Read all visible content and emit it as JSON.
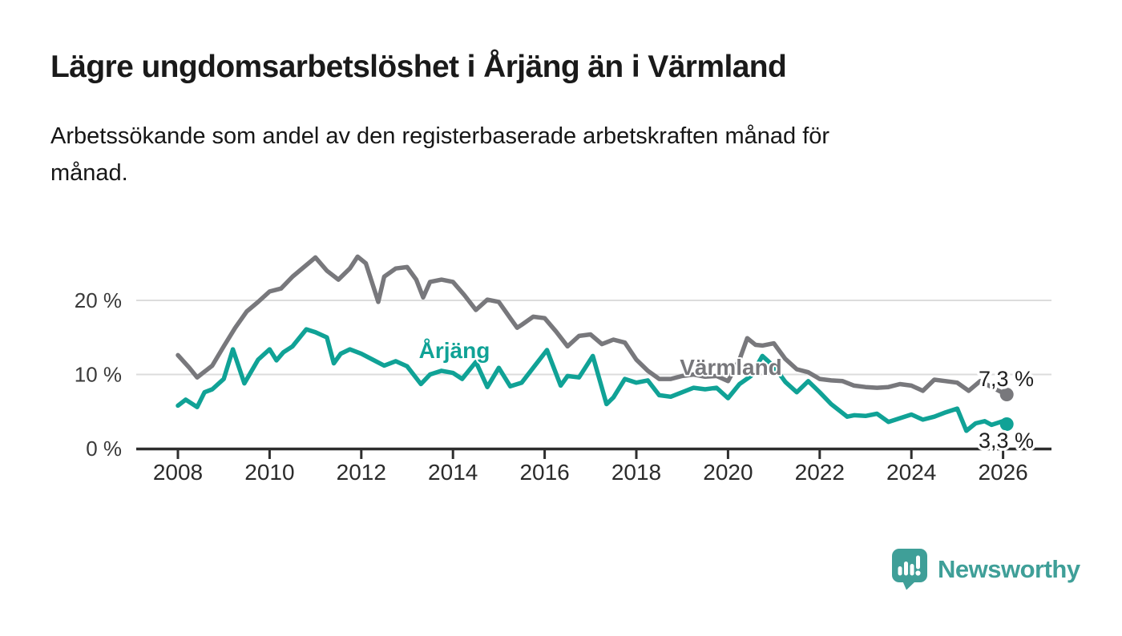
{
  "header": {
    "title": "Lägre ungdomsarbetslöshet i Årjäng än i Värmland",
    "subtitle": "Arbetssökande som andel av den registerbaserade arbetskraften månad för\nmånad."
  },
  "chart_data": {
    "type": "line",
    "title": "Lägre ungdomsarbetslöshet i Årjäng än i Värmland",
    "subtitle": "Arbetssökande som andel av den registerbaserade arbetskraften månad för månad.",
    "unit": "%",
    "grid": true,
    "legend": "inline-labels-on-lines",
    "x_ticks": [
      2008,
      2010,
      2012,
      2014,
      2016,
      2018,
      2020,
      2022,
      2024,
      2026
    ],
    "y_ticks": [
      0,
      10,
      20
    ],
    "y_tick_suffix": " %",
    "y_tick_labels": [
      "0 %",
      "10 %",
      "20 %"
    ],
    "ylim": [
      0,
      28
    ],
    "xlim": [
      2007.1,
      2027.1
    ],
    "axis_color": "#2e2e2e",
    "grid_color": "#dcdcdc",
    "series": [
      {
        "name": "Värmland",
        "key": "varmland",
        "color": "#78787c",
        "end_label": "7,3 %",
        "end_value": 7.3,
        "x": [
          2008.0,
          2008.25,
          2008.42,
          2008.75,
          2009.0,
          2009.25,
          2009.5,
          2009.75,
          2010.0,
          2010.25,
          2010.5,
          2010.75,
          2011.0,
          2011.25,
          2011.5,
          2011.75,
          2011.92,
          2012.1,
          2012.37,
          2012.5,
          2012.75,
          2013.0,
          2013.2,
          2013.35,
          2013.5,
          2013.75,
          2014.0,
          2014.25,
          2014.5,
          2014.75,
          2015.0,
          2015.25,
          2015.4,
          2015.5,
          2015.75,
          2016.0,
          2016.25,
          2016.5,
          2016.75,
          2017.0,
          2017.25,
          2017.5,
          2017.75,
          2018.0,
          2018.25,
          2018.5,
          2018.75,
          2019.0,
          2019.25,
          2019.5,
          2019.75,
          2020.0,
          2020.25,
          2020.42,
          2020.6,
          2020.75,
          2021.0,
          2021.25,
          2021.5,
          2021.75,
          2022.0,
          2022.25,
          2022.5,
          2022.75,
          2023.0,
          2023.25,
          2023.5,
          2023.75,
          2024.0,
          2024.25,
          2024.5,
          2024.75,
          2025.0,
          2025.25,
          2025.5,
          2025.75,
          2026.0,
          2026.08
        ],
        "values": [
          12.6,
          10.9,
          9.6,
          11.2,
          13.8,
          16.3,
          18.5,
          19.8,
          21.2,
          21.6,
          23.2,
          24.5,
          25.8,
          24.0,
          22.8,
          24.3,
          25.9,
          25.0,
          19.8,
          23.2,
          24.3,
          24.5,
          22.8,
          20.4,
          22.5,
          22.8,
          22.5,
          20.7,
          18.7,
          20.1,
          19.8,
          17.6,
          16.3,
          16.7,
          17.8,
          17.6,
          15.8,
          13.8,
          15.2,
          15.4,
          14.1,
          14.7,
          14.3,
          12.0,
          10.5,
          9.4,
          9.4,
          9.8,
          10.0,
          9.7,
          9.8,
          9.1,
          12.0,
          14.9,
          14.0,
          13.9,
          14.2,
          12.1,
          10.7,
          10.3,
          9.4,
          9.2,
          9.1,
          8.5,
          8.3,
          8.2,
          8.3,
          8.7,
          8.5,
          7.8,
          9.3,
          9.1,
          8.9,
          7.8,
          9.1,
          8.3,
          7.5,
          7.3
        ]
      },
      {
        "name": "Årjäng",
        "key": "arjang",
        "color": "#10a296",
        "end_label": "3,3 %",
        "end_value": 3.3,
        "x": [
          2008.0,
          2008.17,
          2008.42,
          2008.58,
          2008.75,
          2009.0,
          2009.2,
          2009.45,
          2009.75,
          2010.0,
          2010.15,
          2010.3,
          2010.5,
          2010.8,
          2011.0,
          2011.25,
          2011.4,
          2011.55,
          2011.75,
          2012.0,
          2012.25,
          2012.5,
          2012.75,
          2013.0,
          2013.3,
          2013.5,
          2013.75,
          2014.0,
          2014.2,
          2014.5,
          2014.75,
          2015.0,
          2015.25,
          2015.5,
          2015.75,
          2016.05,
          2016.35,
          2016.5,
          2016.75,
          2017.05,
          2017.35,
          2017.5,
          2017.75,
          2018.0,
          2018.25,
          2018.5,
          2018.75,
          2019.0,
          2019.25,
          2019.5,
          2019.75,
          2020.0,
          2020.25,
          2020.5,
          2020.75,
          2021.0,
          2021.25,
          2021.5,
          2021.75,
          2022.0,
          2022.25,
          2022.6,
          2022.75,
          2023.0,
          2023.25,
          2023.5,
          2023.75,
          2024.0,
          2024.25,
          2024.5,
          2024.75,
          2025.0,
          2025.2,
          2025.4,
          2025.6,
          2025.75,
          2026.0,
          2026.08
        ],
        "values": [
          5.8,
          6.6,
          5.6,
          7.6,
          8.0,
          9.4,
          13.4,
          8.8,
          12.0,
          13.4,
          11.9,
          13.0,
          13.8,
          16.1,
          15.7,
          15.0,
          11.5,
          12.8,
          13.4,
          12.8,
          12.0,
          11.2,
          11.8,
          11.1,
          8.7,
          10.0,
          10.5,
          10.2,
          9.4,
          11.7,
          8.3,
          10.9,
          8.4,
          8.9,
          10.9,
          13.3,
          8.5,
          9.8,
          9.6,
          12.5,
          6.0,
          6.9,
          9.4,
          8.9,
          9.2,
          7.2,
          7.0,
          7.6,
          8.2,
          8.0,
          8.2,
          6.8,
          8.7,
          9.8,
          12.5,
          11.1,
          9.0,
          7.6,
          9.1,
          7.6,
          6.0,
          4.3,
          4.5,
          4.4,
          4.7,
          3.6,
          4.1,
          4.6,
          3.9,
          4.3,
          4.9,
          5.4,
          2.4,
          3.4,
          3.7,
          3.2,
          3.7,
          3.3
        ]
      }
    ]
  },
  "branding": {
    "name": "Newsworthy",
    "color": "#3f9f98",
    "logo": "newsworthy-speech-bubble-bar-chart-logo"
  }
}
